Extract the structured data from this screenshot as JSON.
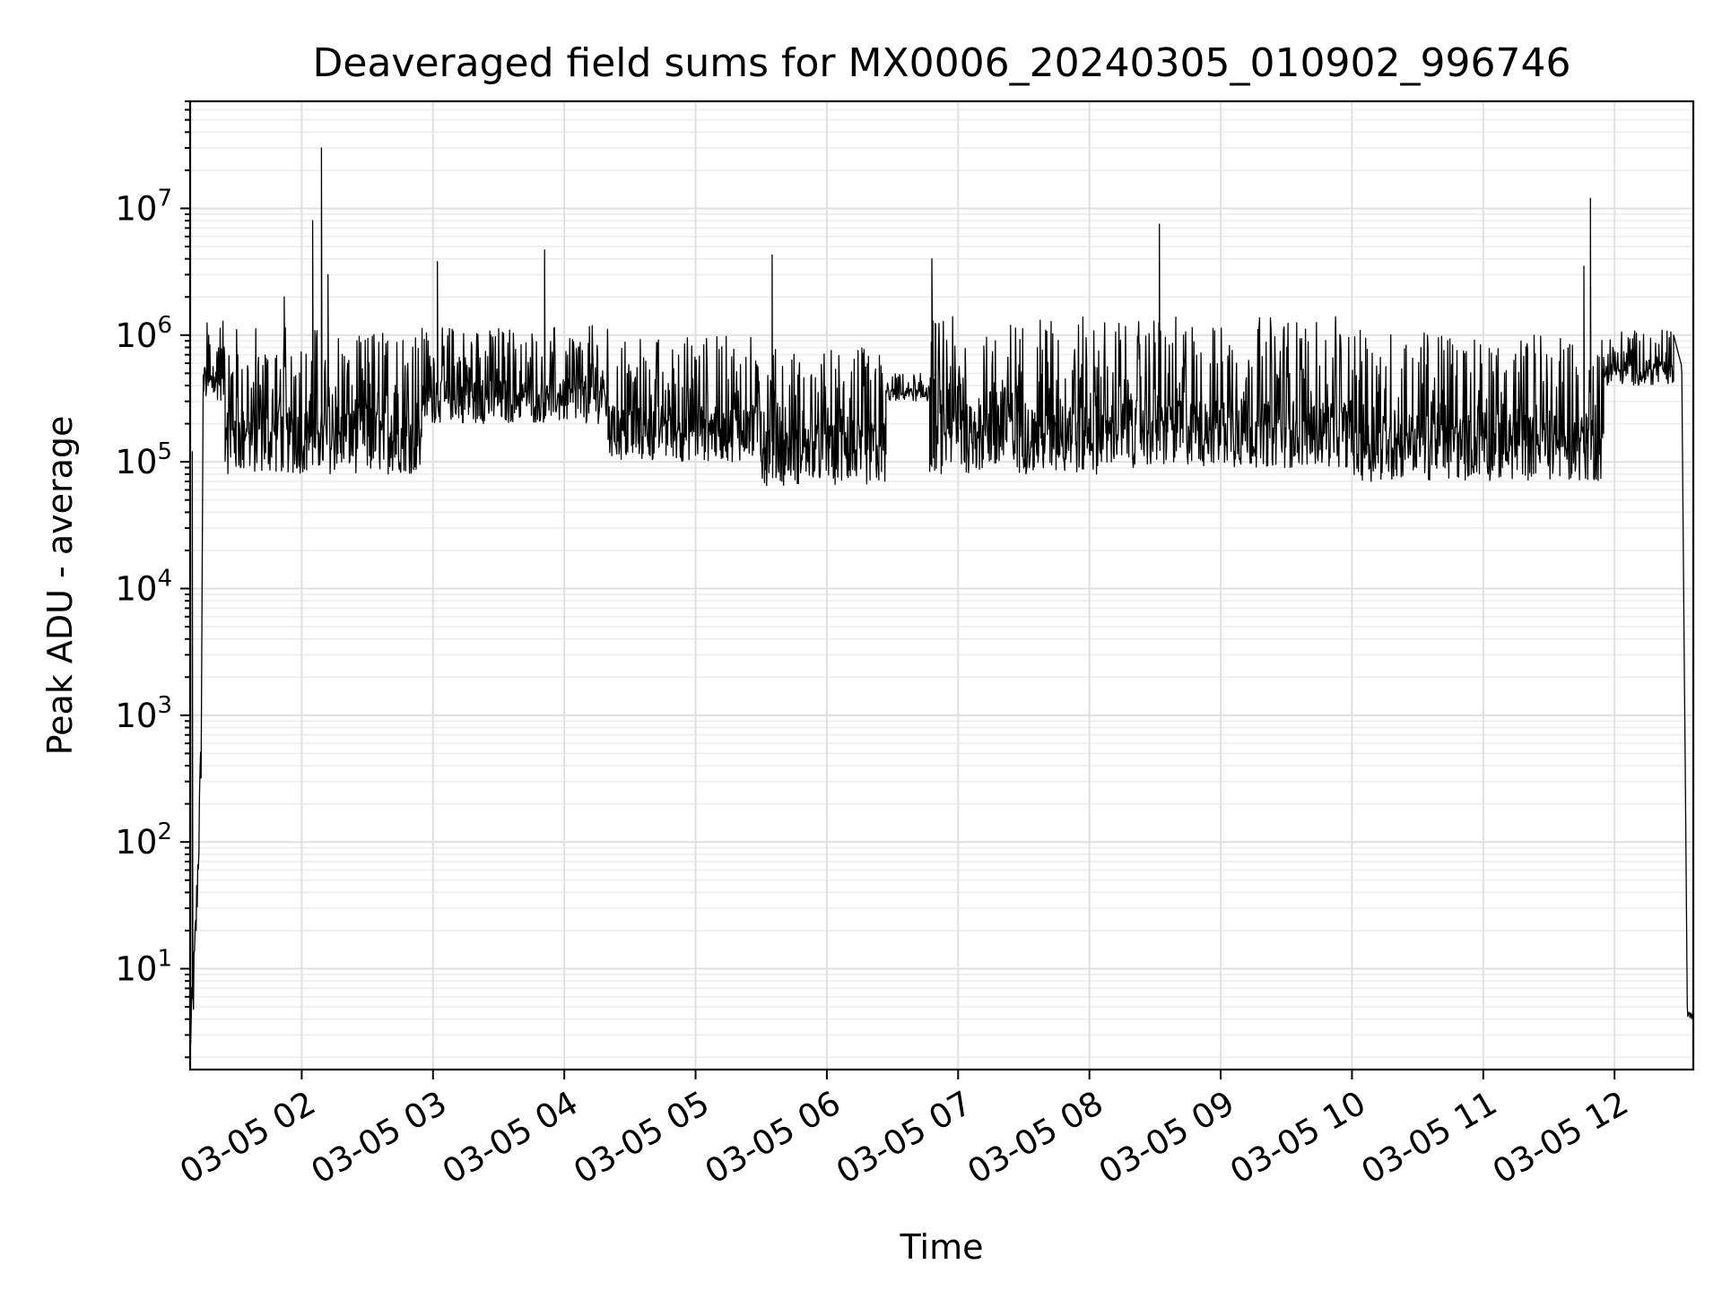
{
  "chart_data": {
    "type": "line",
    "title": "Deaveraged field sums for MX0006_20240305_010902_996746",
    "xlabel": "Time",
    "ylabel": "Peak ADU - average",
    "yscale": "log",
    "ylim": [
      1.6,
      70000000
    ],
    "xlim": [
      "2024-03-05 01:09",
      "2024-03-05 12:36"
    ],
    "grid": true,
    "x_ticks": [
      "03-05 02",
      "03-05 03",
      "03-05 04",
      "03-05 05",
      "03-05 06",
      "03-05 07",
      "03-05 08",
      "03-05 09",
      "03-05 10",
      "03-05 11",
      "03-05 12"
    ],
    "y_ticks": [
      {
        "base": "10",
        "exp": "1",
        "value": 10
      },
      {
        "base": "10",
        "exp": "2",
        "value": 100
      },
      {
        "base": "10",
        "exp": "3",
        "value": 1000
      },
      {
        "base": "10",
        "exp": "4",
        "value": 10000
      },
      {
        "base": "10",
        "exp": "5",
        "value": 100000
      },
      {
        "base": "10",
        "exp": "6",
        "value": 1000000
      },
      {
        "base": "10",
        "exp": "7",
        "value": 10000000
      }
    ],
    "series": [
      {
        "color": "#000000",
        "segments": [
          {
            "start": "01:09",
            "end": "01:14",
            "low": 3,
            "high": 500
          },
          {
            "start": "01:15",
            "end": "01:25",
            "low": 300000,
            "high": 1300000
          },
          {
            "start": "01:25",
            "end": "02:55",
            "low": 80000,
            "high": 1200000
          },
          {
            "start": "02:55",
            "end": "04:20",
            "low": 200000,
            "high": 1200000
          },
          {
            "start": "04:20",
            "end": "05:30",
            "low": 100000,
            "high": 1000000
          },
          {
            "start": "05:30",
            "end": "06:27",
            "low": 65000,
            "high": 800000
          },
          {
            "start": "06:27",
            "end": "06:47",
            "low": 300000,
            "high": 500000
          },
          {
            "start": "06:47",
            "end": "08:10",
            "low": 80000,
            "high": 1400000
          },
          {
            "start": "08:10",
            "end": "10:00",
            "low": 90000,
            "high": 1400000
          },
          {
            "start": "10:00",
            "end": "11:55",
            "low": 70000,
            "high": 1100000
          },
          {
            "start": "11:55",
            "end": "12:27",
            "low": 400000,
            "high": 1100000
          },
          {
            "start": "12:27",
            "end": "12:36",
            "low": 4,
            "high": 1000000
          }
        ],
        "spikes": [
          {
            "t": "01:10",
            "value": 120000
          },
          {
            "t": "01:52",
            "value": 2000000
          },
          {
            "t": "02:05",
            "value": 8000000
          },
          {
            "t": "02:09",
            "value": 30000000
          },
          {
            "t": "02:12",
            "value": 3000000
          },
          {
            "t": "03:02",
            "value": 3800000
          },
          {
            "t": "03:51",
            "value": 4700000
          },
          {
            "t": "05:35",
            "value": 4300000
          },
          {
            "t": "06:48",
            "value": 4000000
          },
          {
            "t": "08:32",
            "value": 7500000
          },
          {
            "t": "11:49",
            "value": 12000000
          },
          {
            "t": "11:46",
            "value": 3500000
          }
        ]
      }
    ]
  }
}
